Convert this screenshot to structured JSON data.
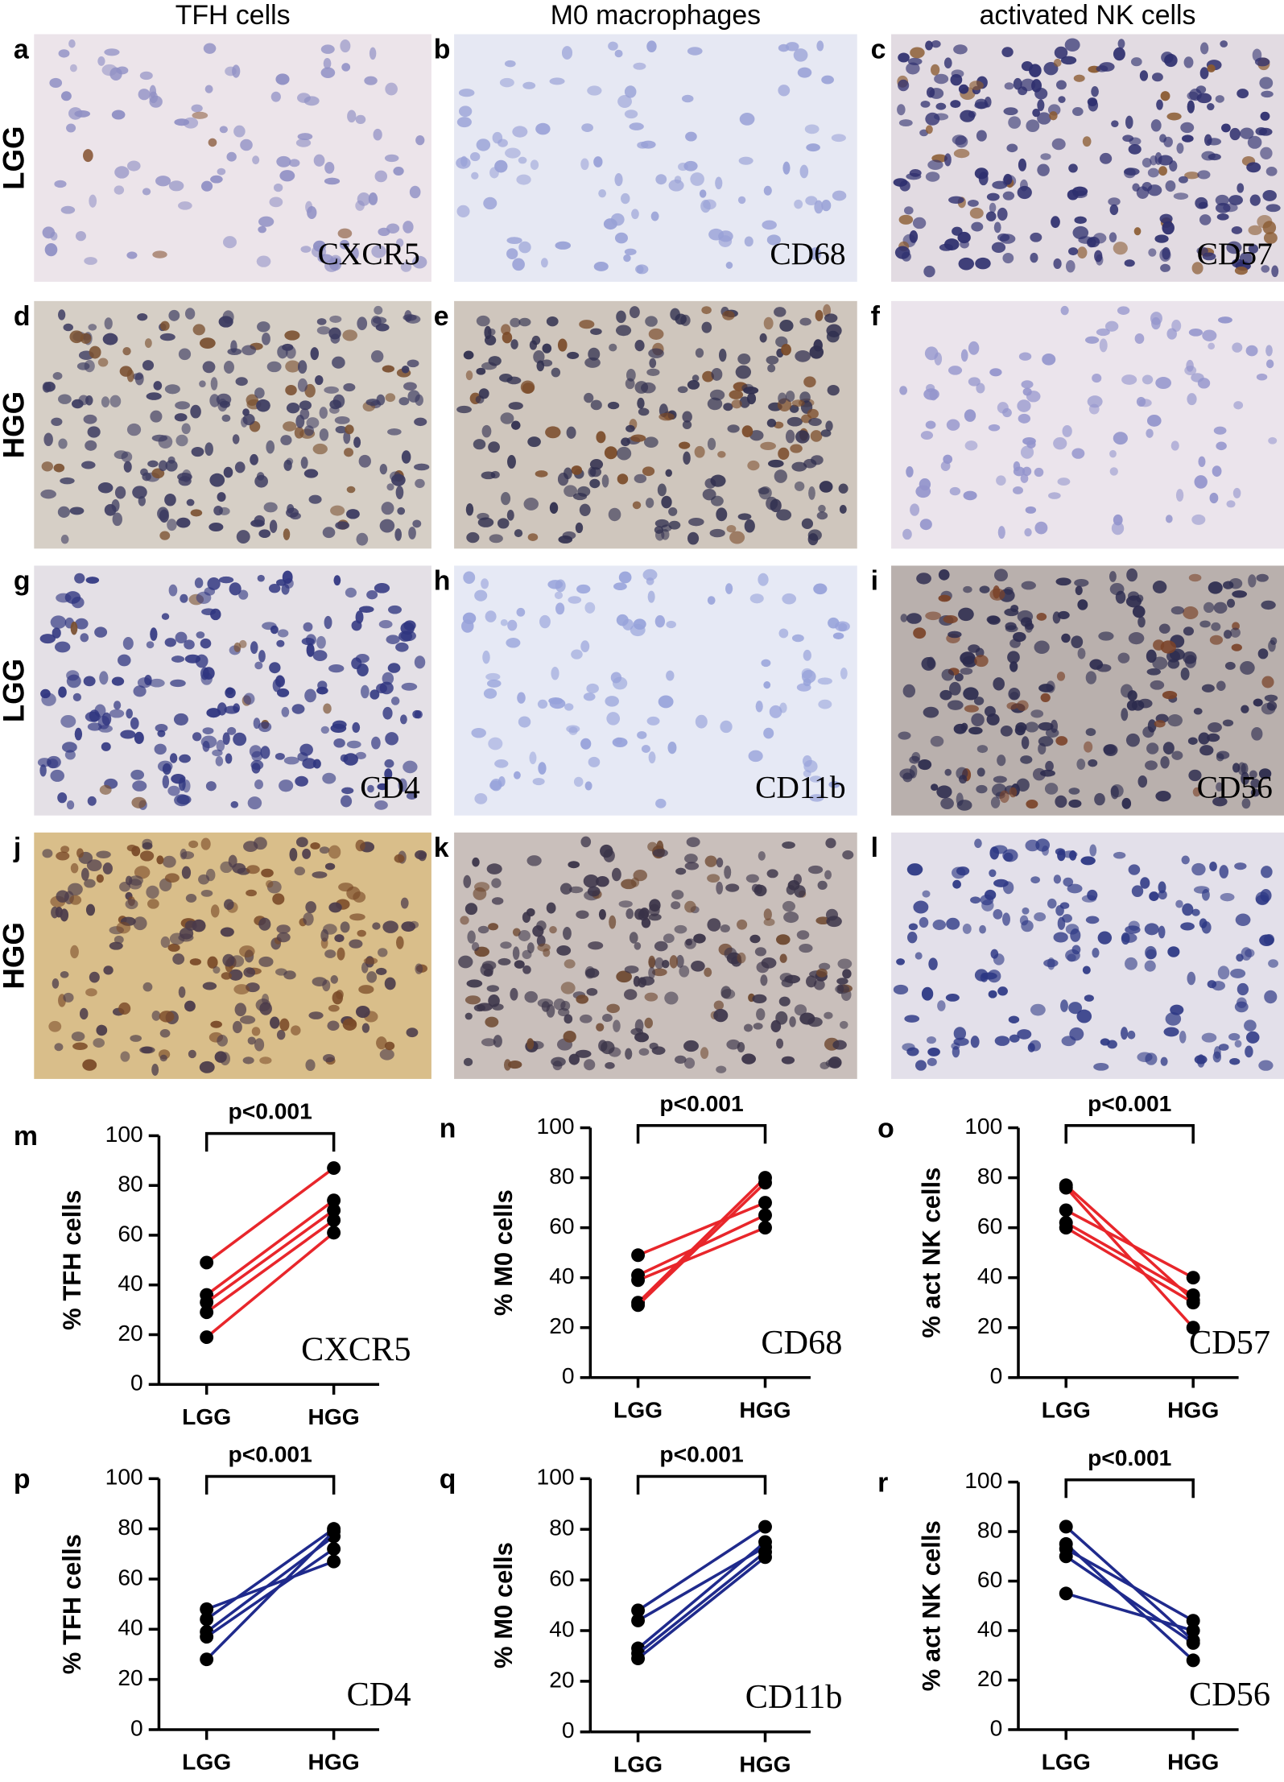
{
  "figure": {
    "column_headers": [
      "TFH cells",
      "M0 macrophages",
      "activated NK cells"
    ],
    "row_labels": [
      "LGG",
      "HGG",
      "LGG",
      "HGG"
    ],
    "panels": [
      {
        "letter": "a",
        "marker": "CXCR5"
      },
      {
        "letter": "b",
        "marker": "CD68"
      },
      {
        "letter": "c",
        "marker": "CD57"
      },
      {
        "letter": "d"
      },
      {
        "letter": "e"
      },
      {
        "letter": "f"
      },
      {
        "letter": "g",
        "marker": "CD4"
      },
      {
        "letter": "h",
        "marker": "CD11b"
      },
      {
        "letter": "i",
        "marker": "CD56"
      },
      {
        "letter": "j"
      },
      {
        "letter": "k"
      },
      {
        "letter": "l"
      }
    ]
  },
  "chart_data": [
    {
      "type": "paired",
      "panel_label": "m",
      "ylabel": "% TFH cells",
      "annotation": "p<0.001",
      "marker": "CXCR5",
      "categories": [
        "LGG",
        "HGG"
      ],
      "ylim": [
        0,
        100
      ],
      "yticks": [
        0,
        20,
        40,
        60,
        80,
        100
      ],
      "color": "#e8262b",
      "series": [
        {
          "values": [
            49,
            87
          ]
        },
        {
          "values": [
            36,
            74
          ]
        },
        {
          "values": [
            33,
            70
          ]
        },
        {
          "values": [
            29,
            66
          ]
        },
        {
          "values": [
            19,
            61
          ]
        }
      ]
    },
    {
      "type": "paired",
      "panel_label": "n",
      "ylabel": "% M0 cells",
      "annotation": "p<0.001",
      "marker": "CD68",
      "categories": [
        "LGG",
        "HGG"
      ],
      "ylim": [
        0,
        100
      ],
      "yticks": [
        0,
        20,
        40,
        60,
        80,
        100
      ],
      "color": "#e8262b",
      "series": [
        {
          "values": [
            49,
            70
          ]
        },
        {
          "values": [
            41,
            65
          ]
        },
        {
          "values": [
            39,
            60
          ]
        },
        {
          "values": [
            30,
            80
          ]
        },
        {
          "values": [
            29,
            78
          ]
        }
      ]
    },
    {
      "type": "paired",
      "panel_label": "o",
      "ylabel": "% act NK cells",
      "annotation": "p<0.001",
      "marker": "CD57",
      "categories": [
        "LGG",
        "HGG"
      ],
      "ylim": [
        0,
        100
      ],
      "yticks": [
        0,
        20,
        40,
        60,
        80,
        100
      ],
      "color": "#e8262b",
      "series": [
        {
          "values": [
            77,
            31
          ]
        },
        {
          "values": [
            76,
            20
          ]
        },
        {
          "values": [
            67,
            40
          ]
        },
        {
          "values": [
            62,
            33
          ]
        },
        {
          "values": [
            60,
            30
          ]
        }
      ]
    },
    {
      "type": "paired",
      "panel_label": "p",
      "ylabel": "% TFH cells",
      "annotation": "p<0.001",
      "marker": "CD4",
      "categories": [
        "LGG",
        "HGG"
      ],
      "ylim": [
        0,
        100
      ],
      "yticks": [
        0,
        20,
        40,
        60,
        80,
        100
      ],
      "color": "#1f2a8c",
      "series": [
        {
          "values": [
            48,
            67
          ]
        },
        {
          "values": [
            44,
            80
          ]
        },
        {
          "values": [
            39,
            77
          ]
        },
        {
          "values": [
            37,
            72
          ]
        },
        {
          "values": [
            28,
            79
          ]
        }
      ]
    },
    {
      "type": "paired",
      "panel_label": "q",
      "ylabel": "% M0 cells",
      "annotation": "p<0.001",
      "marker": "CD11b",
      "categories": [
        "LGG",
        "HGG"
      ],
      "ylim": [
        0,
        100
      ],
      "yticks": [
        0,
        20,
        40,
        60,
        80,
        100
      ],
      "color": "#1f2a8c",
      "series": [
        {
          "values": [
            48,
            81
          ]
        },
        {
          "values": [
            44,
            73
          ]
        },
        {
          "values": [
            33,
            75
          ]
        },
        {
          "values": [
            31,
            71
          ]
        },
        {
          "values": [
            29,
            69
          ]
        }
      ]
    },
    {
      "type": "paired",
      "panel_label": "r",
      "ylabel": "% act NK cells",
      "annotation": "p<0.001",
      "marker": "CD56",
      "categories": [
        "LGG",
        "HGG"
      ],
      "ylim": [
        0,
        100
      ],
      "yticks": [
        0,
        20,
        40,
        60,
        80,
        100
      ],
      "color": "#1f2a8c",
      "series": [
        {
          "values": [
            82,
            36
          ]
        },
        {
          "values": [
            75,
            28
          ]
        },
        {
          "values": [
            73,
            44
          ]
        },
        {
          "values": [
            70,
            35
          ]
        },
        {
          "values": [
            55,
            40
          ]
        }
      ]
    }
  ]
}
